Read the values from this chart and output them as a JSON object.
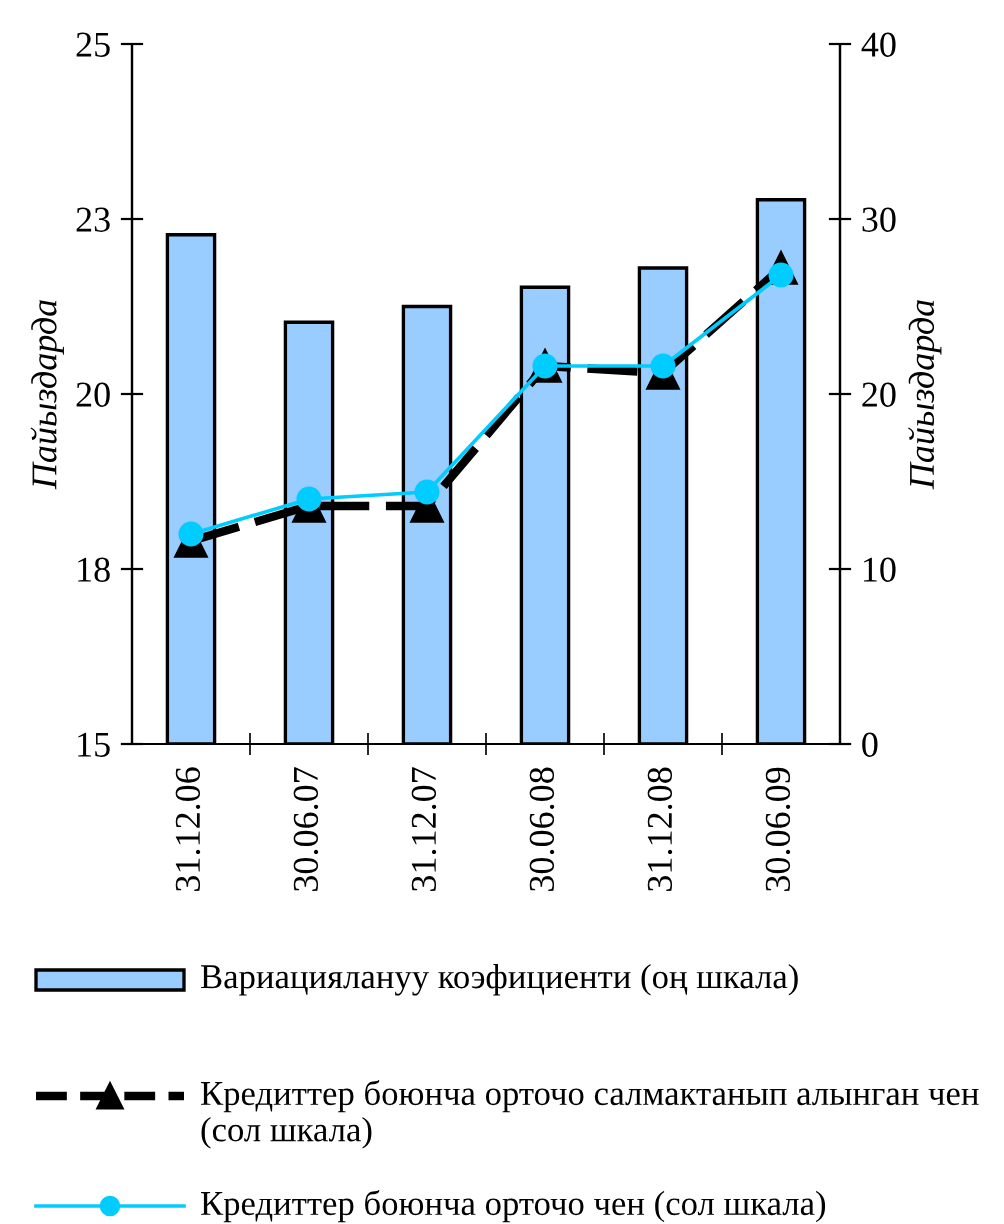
{
  "chart_data": {
    "type": "bar",
    "categories": [
      "31.12.06",
      "30.06.07",
      "31.12.07",
      "30.06.08",
      "31.12.08",
      "30.06.09"
    ],
    "ylabel": "Пайыздарда",
    "y2label": "Пайыздарда",
    "ylim": [
      15,
      25
    ],
    "yticks": [
      15,
      {
        "value": 17.5,
        "label": "18"
      },
      20,
      {
        "value": 22.5,
        "label": "23"
      },
      25
    ],
    "y2lim": [
      0,
      40
    ],
    "y2ticks": [
      0,
      10,
      20,
      30,
      40
    ],
    "series": [
      {
        "name": "Вариациялануу коэфициенти (оң шкала)",
        "axis": "y2",
        "color": "#99ccff",
        "values": [
          29.1,
          24.1,
          25.0,
          26.1,
          27.2,
          31.1
        ]
      },
      {
        "name": "Кредиттер боюнча орточо салмактанып алынган чен (сол шкала)",
        "type": "line",
        "color": "#000000",
        "marker": "triangle",
        "line_style": "dashed",
        "values": [
          17.9,
          18.4,
          18.4,
          20.4,
          20.3,
          21.8
        ]
      },
      {
        "name": "Кредиттер боюнча орточо чен (сол шкала)",
        "type": "line",
        "color": "#00ccff",
        "marker": "circle",
        "line_style": "solid",
        "values": [
          18.0,
          18.5,
          18.6,
          20.4,
          20.4,
          21.7
        ]
      }
    ],
    "grid": false,
    "legend": "bottom"
  }
}
